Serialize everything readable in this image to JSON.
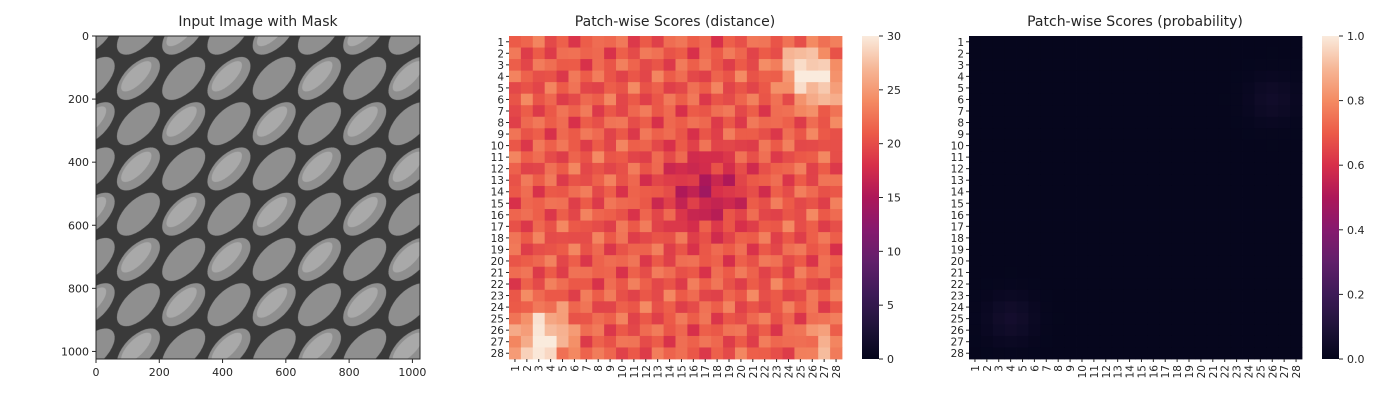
{
  "chart_data": [
    {
      "type": "image",
      "title": "Input Image with Mask",
      "xticks": [
        0,
        200,
        400,
        600,
        800,
        1000
      ],
      "yticks": [
        0,
        200,
        400,
        600,
        800,
        1000
      ],
      "xlim": [
        0,
        1024
      ],
      "ylim": [
        1024,
        0
      ],
      "image_description_colors": [
        "#5f5f5f",
        "#a8a8a8",
        "#2b2b2b"
      ]
    },
    {
      "type": "heatmap",
      "title": "Patch-wise Scores (distance)",
      "rows": 28,
      "cols": 28,
      "row_labels": [
        "1",
        "2",
        "3",
        "4",
        "5",
        "6",
        "7",
        "8",
        "9",
        "10",
        "11",
        "12",
        "13",
        "14",
        "15",
        "16",
        "17",
        "18",
        "19",
        "20",
        "21",
        "22",
        "23",
        "24",
        "25",
        "26",
        "27",
        "28"
      ],
      "col_labels": [
        "1",
        "2",
        "3",
        "4",
        "5",
        "6",
        "7",
        "8",
        "9",
        "10",
        "11",
        "12",
        "13",
        "14",
        "15",
        "16",
        "17",
        "18",
        "19",
        "20",
        "21",
        "22",
        "23",
        "24",
        "25",
        "26",
        "27",
        "28"
      ],
      "colorbar": {
        "min": 0,
        "max": 30,
        "ticks": [
          0,
          5,
          10,
          15,
          20,
          25,
          30
        ]
      },
      "colormap": "rocket",
      "typical_range": [
        14,
        30
      ]
    },
    {
      "type": "heatmap",
      "title": "Patch-wise Scores (probability)",
      "rows": 28,
      "cols": 28,
      "row_labels": [
        "1",
        "2",
        "3",
        "4",
        "5",
        "6",
        "7",
        "8",
        "9",
        "10",
        "11",
        "12",
        "13",
        "14",
        "15",
        "16",
        "17",
        "18",
        "19",
        "20",
        "21",
        "22",
        "23",
        "24",
        "25",
        "26",
        "27",
        "28"
      ],
      "col_labels": [
        "1",
        "2",
        "3",
        "4",
        "5",
        "6",
        "7",
        "8",
        "9",
        "10",
        "11",
        "12",
        "13",
        "14",
        "15",
        "16",
        "17",
        "18",
        "19",
        "20",
        "21",
        "22",
        "23",
        "24",
        "25",
        "26",
        "27",
        "28"
      ],
      "colorbar": {
        "min": 0.0,
        "max": 1.0,
        "ticks": [
          "0.0",
          "0.2",
          "0.4",
          "0.6",
          "0.8",
          "1.0"
        ]
      },
      "colormap": "rocket",
      "typical_range": [
        0.0,
        0.05
      ]
    }
  ]
}
